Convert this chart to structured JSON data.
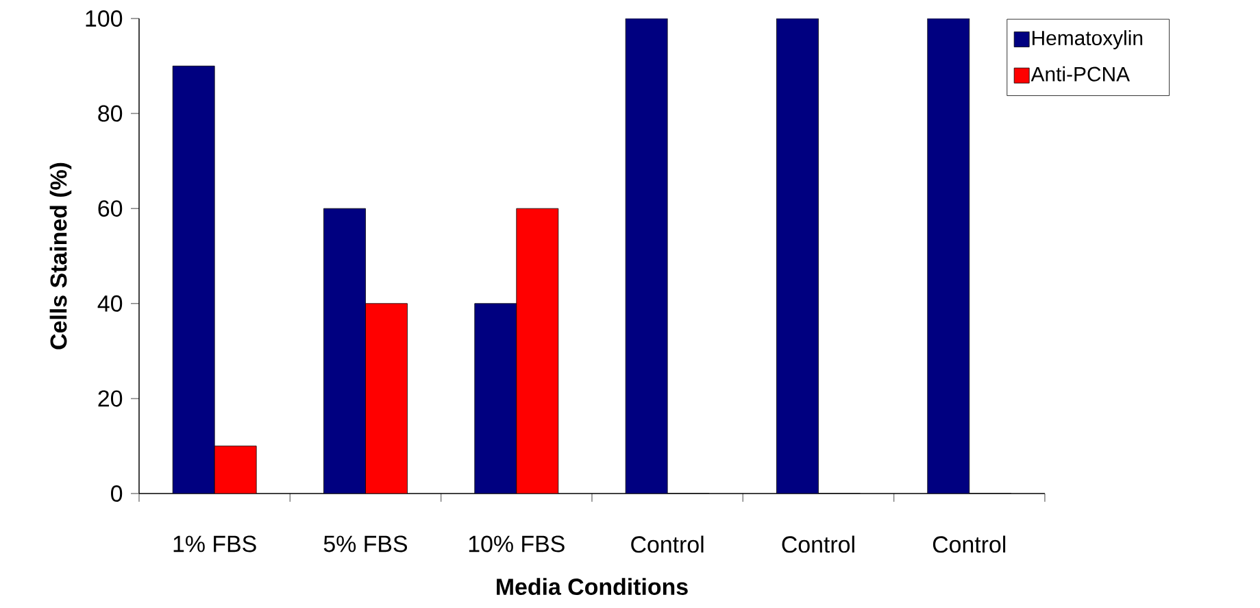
{
  "chart_data": {
    "type": "bar",
    "xlabel": "Media Conditions",
    "ylabel": "Cells Stained (%)",
    "categories": [
      "1% FBS",
      "5% FBS",
      "10% FBS",
      "Control",
      "Control",
      "Control"
    ],
    "series": [
      {
        "name": "Hematoxylin",
        "color": "#000080",
        "values": [
          90,
          60,
          40,
          100,
          100,
          100
        ]
      },
      {
        "name": "Anti-PCNA",
        "color": "#ff0000",
        "values": [
          10,
          40,
          60,
          0,
          0,
          0
        ]
      }
    ],
    "ylim": [
      0,
      100
    ],
    "yticks": [
      0,
      20,
      40,
      60,
      80,
      100
    ],
    "legend": "top right"
  }
}
